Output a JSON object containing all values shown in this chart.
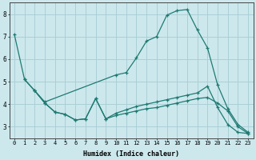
{
  "xlabel": "Humidex (Indice chaleur)",
  "bg_color": "#cce8ed",
  "grid_color": "#aacfd6",
  "line_color": "#1e7a72",
  "xlim": [
    -0.5,
    23.5
  ],
  "ylim": [
    2.5,
    8.5
  ],
  "yticks": [
    3,
    4,
    5,
    6,
    7,
    8
  ],
  "xtick_labels": [
    "0",
    "1",
    "2",
    "3",
    "4",
    "5",
    "6",
    "7",
    "8",
    "9",
    "10",
    "11",
    "12",
    "13",
    "14",
    "15",
    "16",
    "17",
    "18",
    "19",
    "20",
    "21",
    "22",
    "23"
  ],
  "line1_x": [
    0,
    1,
    2,
    3,
    10,
    11,
    12,
    13,
    14,
    15,
    16,
    17,
    18,
    19,
    20,
    21,
    22,
    23
  ],
  "line1_y": [
    7.1,
    5.1,
    4.6,
    4.1,
    5.3,
    5.4,
    6.05,
    6.8,
    7.0,
    7.95,
    8.15,
    8.2,
    7.3,
    6.5,
    4.85,
    3.8,
    3.1,
    2.75
  ],
  "line2_x": [
    2,
    3,
    4,
    5,
    6,
    7,
    8,
    9,
    10,
    11,
    12,
    13,
    14,
    15,
    16,
    17,
    18,
    19,
    20,
    21,
    22,
    23
  ],
  "line2_y": [
    4.6,
    4.05,
    3.65,
    3.55,
    3.3,
    3.35,
    4.25,
    3.35,
    3.5,
    3.6,
    3.7,
    3.8,
    3.85,
    3.95,
    4.05,
    4.15,
    4.25,
    4.3,
    4.05,
    3.7,
    3.0,
    2.7
  ],
  "line3_x": [
    1,
    2,
    3,
    4,
    5,
    6,
    7,
    8,
    9,
    10,
    11,
    12,
    13,
    14,
    15,
    16,
    17,
    18,
    19,
    20,
    21,
    22,
    23
  ],
  "line3_y": [
    5.1,
    4.6,
    4.05,
    3.65,
    3.55,
    3.3,
    3.35,
    4.25,
    3.35,
    3.6,
    3.75,
    3.9,
    4.0,
    4.1,
    4.2,
    4.3,
    4.4,
    4.5,
    4.8,
    3.85,
    3.1,
    2.75,
    2.7
  ]
}
